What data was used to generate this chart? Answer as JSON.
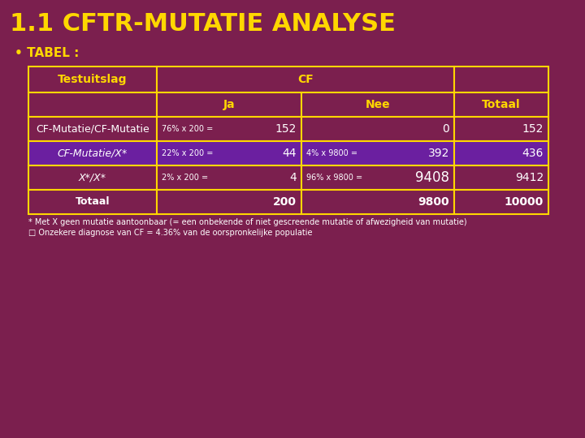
{
  "title": "1.1 CFTR-MUTATIE ANALYSE",
  "title_color": "#FFD700",
  "bg_color": "#7B1F4E",
  "bullet_label": "• TABEL :",
  "bullet_color": "#FFD700",
  "table_border_color": "#FFD700",
  "header_bg": "#7B1F4E",
  "header_text_color": "#FFD700",
  "highlight_row_bg": "#6B1FA0",
  "normal_row_bg": "#7B1F4E",
  "cell_text_color": "#FFFFFF",
  "footnote_color": "#FFFFFF",
  "footnote1": "* Met X geen mutatie aantoonbaar (= een onbekende of niet gescreende mutatie of afwezigheid van mutatie)",
  "footnote2": "□ Onzekere diagnose van CF = 4.36% van de oorspronkelijke populatie",
  "rows": [
    {
      "label": "CF-Mutatie/CF-Mutatie",
      "label_italic": false,
      "ja_small": "76% x 200 =",
      "ja_big": "152",
      "nee_small": "",
      "nee_big": "0",
      "totaal": "152",
      "highlight": false,
      "is_total": false
    },
    {
      "label": "CF-Mutatie/X*",
      "label_italic": true,
      "ja_small": "22% x 200 =",
      "ja_big": "44",
      "nee_small": "4% x 9800 =",
      "nee_big": "392",
      "totaal": "436",
      "highlight": true,
      "is_total": false
    },
    {
      "label": "X*/X*",
      "label_italic": true,
      "ja_small": "2% x 200 =",
      "ja_big": "4",
      "nee_small": "96% x 9800 =",
      "nee_big": "9408",
      "totaal": "9412",
      "highlight": false,
      "is_total": false
    },
    {
      "label": "Totaal",
      "label_italic": false,
      "ja_small": "",
      "ja_big": "200",
      "nee_small": "",
      "nee_big": "9800",
      "totaal": "10000",
      "highlight": false,
      "is_total": true
    }
  ]
}
